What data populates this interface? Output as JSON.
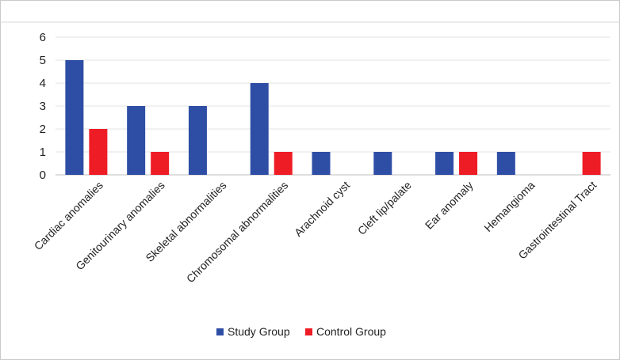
{
  "chart_data": {
    "type": "bar",
    "title": "",
    "xlabel": "",
    "ylabel": "",
    "ylim": [
      0,
      6
    ],
    "yticks": [
      0,
      1,
      2,
      3,
      4,
      5,
      6
    ],
    "categories": [
      "Cardiac anomalies",
      "Genitourinary anomalies",
      "Skeletal abnormalities",
      "Chromosomal abnormalities",
      "Arachnoid cyst",
      "Cleft lip/palate",
      "Ear anomaly",
      "Hemangioma",
      "Gastrointestinal Tract"
    ],
    "series": [
      {
        "name": "Study Group",
        "color": "#2e4ea5",
        "values": [
          5,
          3,
          3,
          4,
          1,
          1,
          1,
          1,
          0
        ]
      },
      {
        "name": "Control Group",
        "color": "#ee1c25",
        "values": [
          2,
          1,
          0,
          1,
          0,
          0,
          1,
          0,
          1
        ]
      }
    ],
    "grid": true,
    "legend": "bottom-center"
  }
}
